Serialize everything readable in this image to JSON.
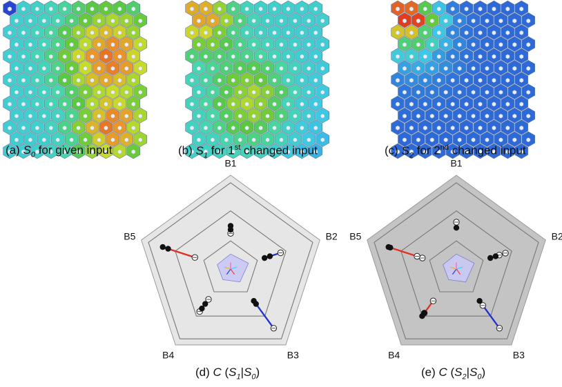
{
  "captions": {
    "a": {
      "prefix": "(a) ",
      "sym": "S",
      "sub": "0",
      "rest": " for given input"
    },
    "b": {
      "prefix": "(b) ",
      "sym": "S",
      "sub": "1",
      "mid": " for 1",
      "sup": "st",
      "rest": " changed input"
    },
    "c": {
      "prefix": "(c) ",
      "sym": "S",
      "sub": "2",
      "mid": " for 2",
      "sup": "nd",
      "rest": " changed input"
    },
    "d": {
      "prefix": "(d) ",
      "sym": "C",
      "open": " (",
      "s": "S",
      "sub": "1",
      "bar": "|",
      "s0": "S",
      "sub0": "0",
      "close": ")"
    },
    "e": {
      "prefix": "(e) ",
      "sym": "C",
      "open": " (",
      "s": "S",
      "sub": "2",
      "bar": "|",
      "s0": "S",
      "sub0": "0",
      "close": ")"
    }
  },
  "radar_axes": [
    "B1",
    "B2",
    "B3",
    "B4",
    "B5"
  ],
  "radar_d": {
    "background": "#e6e6e6",
    "markers": [
      {
        "axis": 0,
        "filled": [
          0.46,
          0.42
        ],
        "open": [
          0.38
        ],
        "color": "#2233cc"
      },
      {
        "axis": 1,
        "filled": [
          0.38,
          0.44
        ],
        "open": [
          0.56
        ],
        "color": "#2233cc"
      },
      {
        "axis": 2,
        "filled": [
          0.42,
          0.46
        ],
        "open": [
          0.78
        ],
        "color": "#2233cc"
      },
      {
        "axis": 3,
        "filled": [
          0.46,
          0.52
        ],
        "open": [
          0.4,
          0.56
        ],
        "color": "#dd3322"
      },
      {
        "axis": 4,
        "filled": [
          0.7,
          0.76
        ],
        "open": [
          0.4
        ],
        "color": "#dd3322"
      }
    ]
  },
  "radar_e": {
    "background": "#c4c4c4",
    "markers": [
      {
        "axis": 0,
        "filled": [
          0.44
        ],
        "open": [
          0.5
        ],
        "color": "#2233cc"
      },
      {
        "axis": 1,
        "filled": [
          0.44,
          0.38
        ],
        "open": [
          0.48,
          0.55
        ],
        "color": "#2233cc"
      },
      {
        "axis": 2,
        "filled": [
          0.42
        ],
        "open": [
          0.48,
          0.78
        ],
        "color": "#2233cc"
      },
      {
        "axis": 3,
        "filled": [
          0.58,
          0.62
        ],
        "open": [
          0.42,
          0.58
        ],
        "color": "#dd3322"
      },
      {
        "axis": 4,
        "filled": [
          0.76,
          0.74
        ],
        "open": [
          0.38,
          0.44
        ],
        "color": "#dd3322"
      }
    ]
  },
  "som_maps": {
    "a_centers": [
      [
        0.78,
        0.35
      ],
      [
        0.8,
        0.82
      ]
    ],
    "b_center": [
      0.45,
      0.65
    ],
    "c_center": [
      0.05,
      0.05
    ]
  },
  "colors": {
    "som_blue": "#2a44cc",
    "open_marker": "#ffffff",
    "poly_fill": "#c9c9f5"
  }
}
